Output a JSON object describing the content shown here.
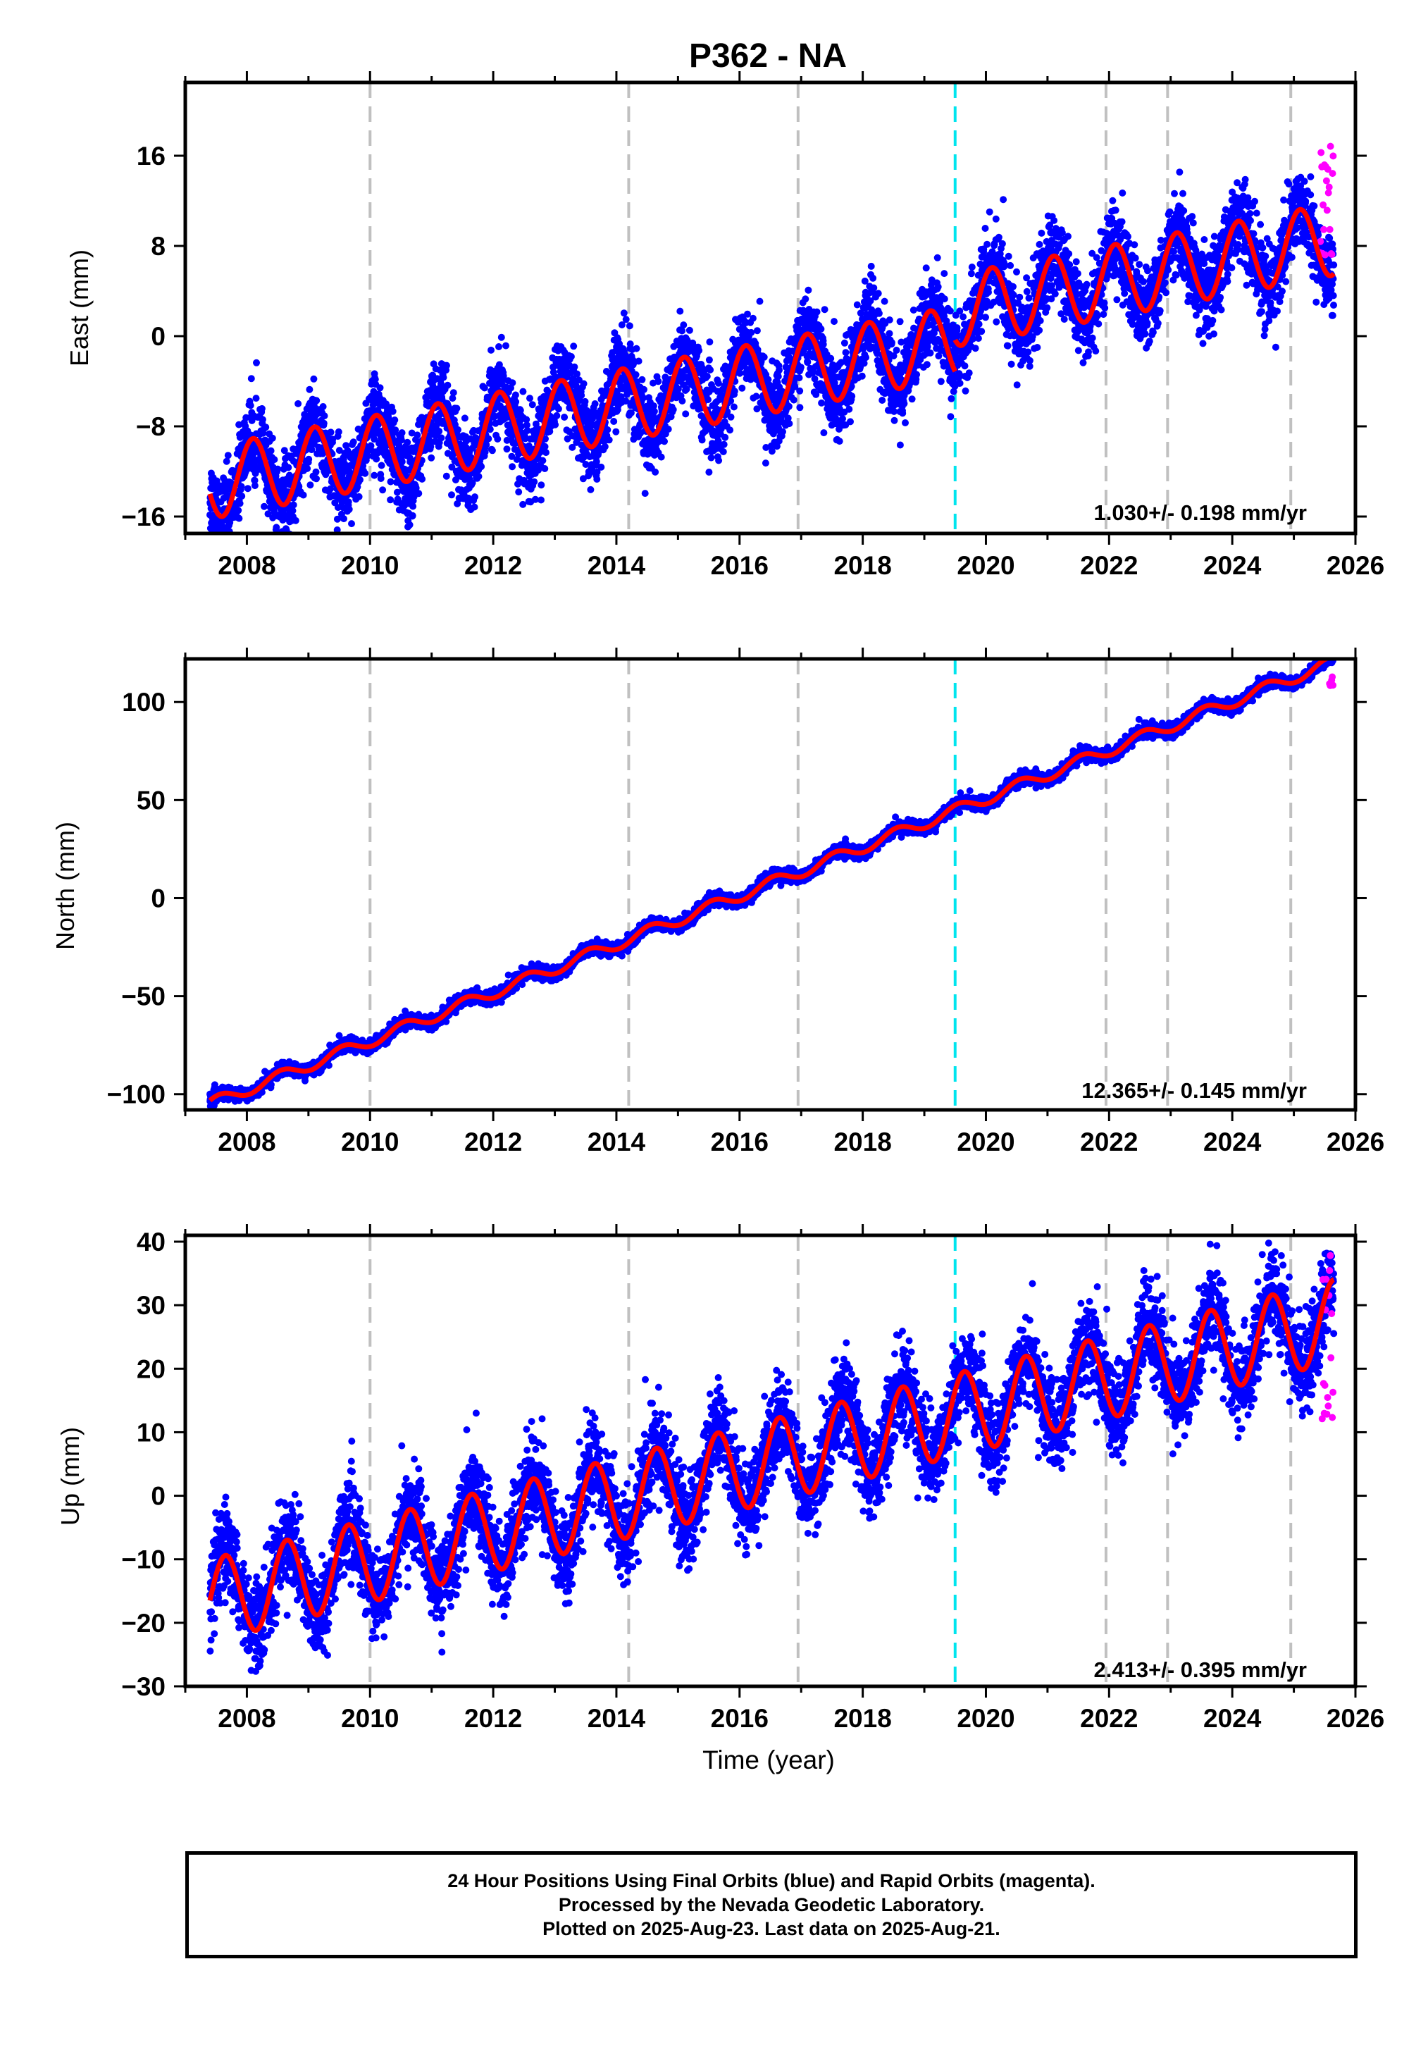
{
  "title": "P362 - NA",
  "colors": {
    "final_orbit_points": "#0000ff",
    "rapid_orbit_points": "#ff00ff",
    "model_fit": "#ff0000",
    "event_line_gray": "#c0c0c0",
    "event_line_cyan": "#00e5ee"
  },
  "chart_data": [
    {
      "type": "scatter",
      "panel": "East",
      "ylabel": "East (mm)",
      "xlim": [
        2007.0,
        2026.0
      ],
      "ylim": [
        -17.5,
        22.5
      ],
      "xticks": [
        2008,
        2010,
        2012,
        2014,
        2016,
        2018,
        2020,
        2022,
        2024,
        2026
      ],
      "yticks": [
        -16,
        -8,
        0,
        8,
        16
      ],
      "ytick_labels": [
        "−16",
        "−8",
        "0",
        "8",
        "16"
      ],
      "rate_label": "1.030+/- 0.198 mm/yr",
      "gray_event_lines": [
        2010.0,
        2014.2,
        2016.95,
        2021.95,
        2022.95,
        2024.95
      ],
      "cyan_event_line": 2019.5,
      "model": {
        "segments": [
          {
            "start": 2007.4,
            "end": 2019.5,
            "offset": -13.0,
            "rate": 1.03,
            "amplitude": 3.2
          },
          {
            "start": 2019.5,
            "end": 2025.65,
            "offset": -10.2,
            "rate": 1.03,
            "amplitude": 3.2
          }
        ],
        "seasonal_peak_phase": 0.1,
        "scatter_sd": 1.8
      },
      "rapid_orbits": {
        "start": 2025.42,
        "end": 2025.64,
        "min": 7.0,
        "max": 17.5
      }
    },
    {
      "type": "scatter",
      "panel": "North",
      "ylabel": "North (mm)",
      "xlim": [
        2007.0,
        2026.0
      ],
      "ylim": [
        -108,
        122
      ],
      "xticks": [
        2008,
        2010,
        2012,
        2014,
        2016,
        2018,
        2020,
        2022,
        2024,
        2026
      ],
      "yticks": [
        -100,
        -50,
        0,
        50,
        100
      ],
      "ytick_labels": [
        "−100",
        "−50",
        "0",
        "50",
        "100"
      ],
      "rate_label": "12.365+/- 0.145 mm/yr",
      "gray_event_lines": [
        2010.0,
        2014.2,
        2016.95,
        2021.95,
        2022.95,
        2024.95
      ],
      "cyan_event_line": 2019.5,
      "model": {
        "segments": [
          {
            "start": 2007.4,
            "end": 2019.5,
            "offset": -105.0,
            "rate": 12.365,
            "amplitude": 3.0
          },
          {
            "start": 2019.5,
            "end": 2025.65,
            "offset": -105.0,
            "rate": 12.365,
            "amplitude": 3.0
          }
        ],
        "seasonal_peak_phase": 0.55,
        "scatter_sd": 1.6
      },
      "rapid_orbits": {
        "start": 2025.58,
        "end": 2025.64,
        "min": 108,
        "max": 116
      }
    },
    {
      "type": "scatter",
      "panel": "Up",
      "ylabel": "Up (mm)",
      "xlabel": "Time (year)",
      "xlim": [
        2007.0,
        2026.0
      ],
      "ylim": [
        -30,
        41
      ],
      "xticks": [
        2008,
        2010,
        2012,
        2014,
        2016,
        2018,
        2020,
        2022,
        2024,
        2026
      ],
      "yticks": [
        -30,
        -20,
        -10,
        0,
        10,
        20,
        30,
        40
      ],
      "ytick_labels": [
        "−30",
        "−20",
        "−10",
        "0",
        "10",
        "20",
        "30",
        "40"
      ],
      "rate_label": "2.413+/- 0.395 mm/yr",
      "gray_event_lines": [
        2010.0,
        2014.2,
        2016.95,
        2021.95,
        2022.95,
        2024.95
      ],
      "cyan_event_line": 2019.5,
      "model": {
        "segments": [
          {
            "start": 2007.4,
            "end": 2019.5,
            "offset": -16.5,
            "rate": 2.413,
            "amplitude": 6.5
          },
          {
            "start": 2019.5,
            "end": 2025.65,
            "offset": -16.5,
            "rate": 2.413,
            "amplitude": 6.5
          }
        ],
        "seasonal_peak_phase": 0.65,
        "scatter_sd": 3.5
      },
      "rapid_orbits": {
        "start": 2025.46,
        "end": 2025.64,
        "min": 12,
        "max": 40
      }
    }
  ],
  "caption": {
    "line1": "24 Hour Positions Using Final Orbits (blue) and Rapid Orbits (magenta).",
    "line2": "Processed by the Nevada Geodetic Laboratory.",
    "line3": "Plotted on 2025-Aug-23. Last data on 2025-Aug-21."
  }
}
